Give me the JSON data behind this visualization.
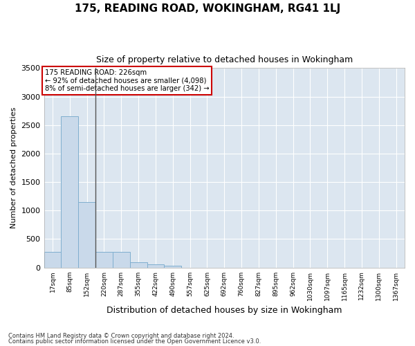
{
  "title": "175, READING ROAD, WOKINGHAM, RG41 1LJ",
  "subtitle": "Size of property relative to detached houses in Wokingham",
  "xlabel": "Distribution of detached houses by size in Wokingham",
  "ylabel": "Number of detached properties",
  "categories": [
    "17sqm",
    "85sqm",
    "152sqm",
    "220sqm",
    "287sqm",
    "355sqm",
    "422sqm",
    "490sqm",
    "557sqm",
    "625sqm",
    "692sqm",
    "760sqm",
    "827sqm",
    "895sqm",
    "962sqm",
    "1030sqm",
    "1097sqm",
    "1165sqm",
    "1232sqm",
    "1300sqm",
    "1367sqm"
  ],
  "values": [
    270,
    2650,
    1150,
    280,
    280,
    95,
    55,
    35,
    0,
    0,
    0,
    0,
    0,
    0,
    0,
    0,
    0,
    0,
    0,
    0,
    0
  ],
  "bar_color": "#c9d9ea",
  "bar_edge_color": "#7faecf",
  "vline_x": 2.5,
  "annotation_title": "175 READING ROAD: 226sqm",
  "annotation_line1": "← 92% of detached houses are smaller (4,098)",
  "annotation_line2": "8% of semi-detached houses are larger (342) →",
  "annotation_box_color": "#ffffff",
  "annotation_box_edge": "#cc0000",
  "ylim": [
    0,
    3500
  ],
  "yticks": [
    0,
    500,
    1000,
    1500,
    2000,
    2500,
    3000,
    3500
  ],
  "plot_bg_color": "#dce6f0",
  "figure_bg_color": "#ffffff",
  "grid_color": "#ffffff",
  "footer_line1": "Contains HM Land Registry data © Crown copyright and database right 2024.",
  "footer_line2": "Contains public sector information licensed under the Open Government Licence v3.0."
}
